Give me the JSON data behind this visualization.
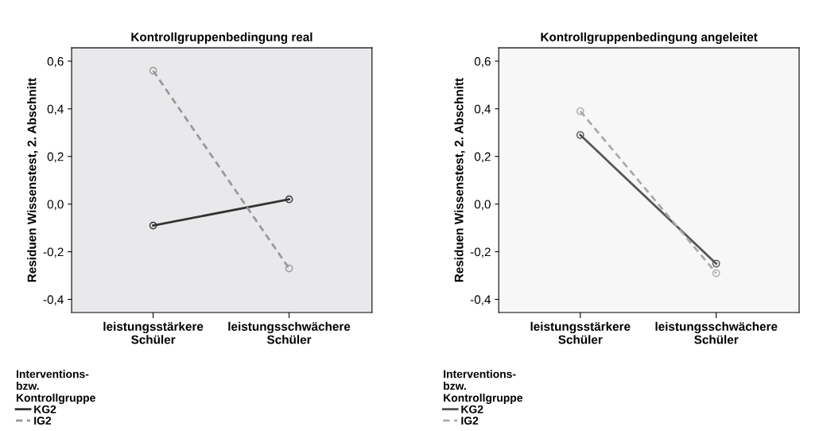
{
  "chart_data": [
    {
      "type": "line",
      "title": "Kontrollgruppenbedingung real",
      "ylabel": "Residuen Wissenstest, 2. Abschnitt",
      "legend_title": "Interventions-\nbzw.\nKontrollgruppe",
      "legend": "bottom left",
      "marker": "circle",
      "categories": [
        "leistungsstärkere\nSchüler",
        "leistungsschwächere\nSchüler"
      ],
      "ylim": [
        -0.455,
        0.656
      ],
      "yticks": [
        {
          "value": -0.4,
          "label": "-0,4"
        },
        {
          "value": -0.2,
          "label": "-0,2"
        },
        {
          "value": 0.0,
          "label": "0,0"
        },
        {
          "value": 0.2,
          "label": "0,2"
        },
        {
          "value": 0.4,
          "label": "0,4"
        },
        {
          "value": 0.6,
          "label": "0,6"
        }
      ],
      "grid": false,
      "series": [
        {
          "name": "KG2",
          "color": "#333333",
          "line_style": "solid",
          "values": [
            -0.09,
            0.02
          ]
        },
        {
          "name": "IG2",
          "color": "#999999",
          "line_style": "dashed",
          "values": [
            0.56,
            -0.27
          ]
        }
      ]
    },
    {
      "type": "line",
      "title": "Kontrollgruppenbedingung angeleitet",
      "ylabel": "Residuen Wissenstest, 2. Abschnitt",
      "legend_title": "Interventions-\nbzw.\nKontrollgruppe",
      "legend": "bottom left",
      "marker": "circle",
      "categories": [
        "leistungsstärkere\nSchüler",
        "leistungsschwächere\nSchüler"
      ],
      "ylim": [
        -0.455,
        0.656
      ],
      "yticks": [
        {
          "value": -0.4,
          "label": "-0,4"
        },
        {
          "value": -0.2,
          "label": "-0,2"
        },
        {
          "value": 0.0,
          "label": "0,0"
        },
        {
          "value": 0.2,
          "label": "0,2"
        },
        {
          "value": 0.4,
          "label": "0,4"
        },
        {
          "value": 0.6,
          "label": "0,6"
        }
      ],
      "grid": false,
      "series": [
        {
          "name": "KG2",
          "color": "#555555",
          "line_style": "solid",
          "values": [
            0.29,
            -0.25
          ]
        },
        {
          "name": "IG2",
          "color": "#aaaaaa",
          "line_style": "dashed",
          "values": [
            0.39,
            -0.29
          ]
        }
      ]
    }
  ]
}
